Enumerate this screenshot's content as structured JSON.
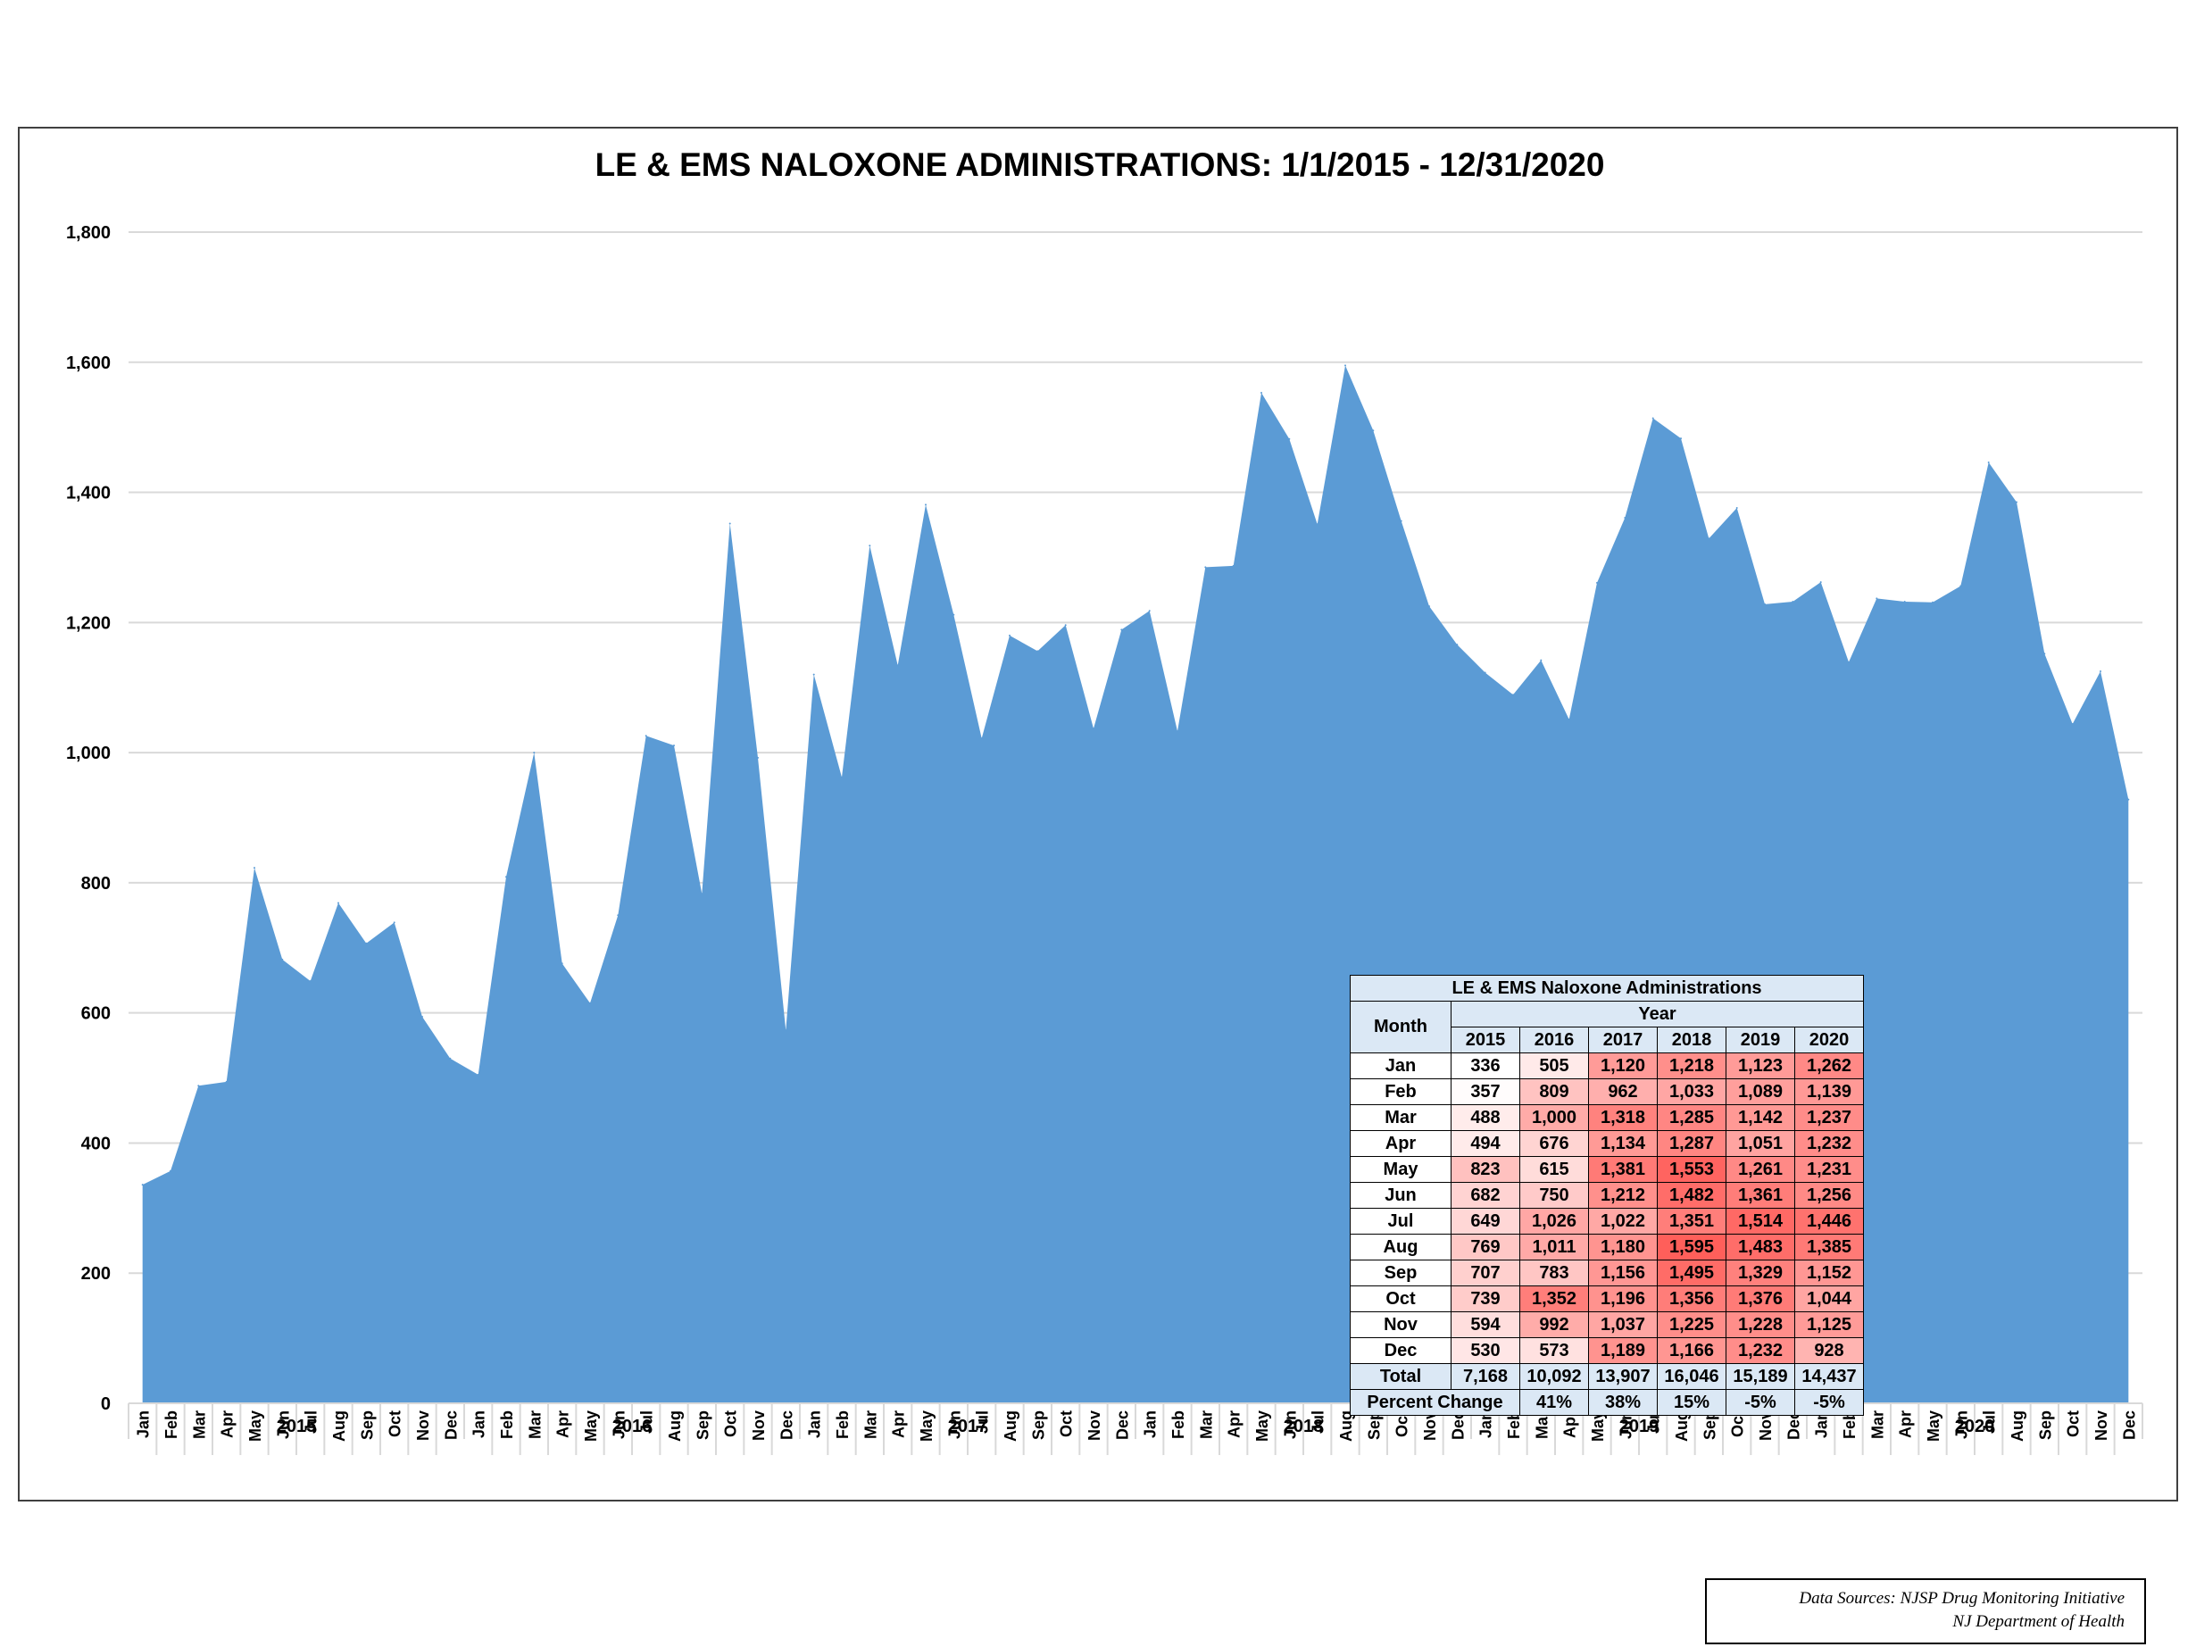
{
  "chart_data": {
    "type": "area",
    "title": "LE & EMS NALOXONE ADMINISTRATIONS: 1/1/2015 - 12/31/2020",
    "xlabel": "",
    "ylabel": "",
    "ylim": [
      0,
      1800
    ],
    "yticks": [
      "0",
      "200",
      "400",
      "600",
      "800",
      "1,000",
      "1,200",
      "1,400",
      "1,600",
      "1,800"
    ],
    "ytick_values": [
      0,
      200,
      400,
      600,
      800,
      1000,
      1200,
      1400,
      1600,
      1800
    ],
    "grid": true,
    "fill_color": "#5b9bd5",
    "months": [
      "Jan",
      "Feb",
      "Mar",
      "Apr",
      "May",
      "Jun",
      "Jul",
      "Aug",
      "Sep",
      "Oct",
      "Nov",
      "Dec"
    ],
    "years": [
      "2015",
      "2016",
      "2017",
      "2018",
      "2019",
      "2020"
    ],
    "series": [
      {
        "values": [
          336,
          357,
          488,
          494,
          823,
          682,
          649,
          769,
          707,
          739,
          594,
          530,
          505,
          809,
          1000,
          676,
          615,
          750,
          1026,
          1011,
          783,
          1352,
          992,
          573,
          1120,
          962,
          1318,
          1134,
          1381,
          1212,
          1022,
          1180,
          1156,
          1196,
          1037,
          1189,
          1218,
          1033,
          1285,
          1287,
          1553,
          1482,
          1351,
          1595,
          1495,
          1356,
          1225,
          1166,
          1123,
          1089,
          1142,
          1051,
          1261,
          1361,
          1514,
          1483,
          1329,
          1376,
          1228,
          1232,
          1262,
          1139,
          1237,
          1232,
          1231,
          1256,
          1446,
          1385,
          1152,
          1044,
          1125,
          928
        ]
      }
    ]
  },
  "table": {
    "title": "LE & EMS Naloxone Administrations",
    "month_header": "Month",
    "year_header": "Year",
    "year_cols": [
      "2015",
      "2016",
      "2017",
      "2018",
      "2019",
      "2020"
    ],
    "rows": [
      {
        "month": "Jan",
        "cells": [
          "336",
          "505",
          "1,120",
          "1,218",
          "1,123",
          "1,262"
        ],
        "vals": [
          336,
          505,
          1120,
          1218,
          1123,
          1262
        ]
      },
      {
        "month": "Feb",
        "cells": [
          "357",
          "809",
          "962",
          "1,033",
          "1,089",
          "1,139"
        ],
        "vals": [
          357,
          809,
          962,
          1033,
          1089,
          1139
        ]
      },
      {
        "month": "Mar",
        "cells": [
          "488",
          "1,000",
          "1,318",
          "1,285",
          "1,142",
          "1,237"
        ],
        "vals": [
          488,
          1000,
          1318,
          1285,
          1142,
          1237
        ]
      },
      {
        "month": "Apr",
        "cells": [
          "494",
          "676",
          "1,134",
          "1,287",
          "1,051",
          "1,232"
        ],
        "vals": [
          494,
          676,
          1134,
          1287,
          1051,
          1232
        ]
      },
      {
        "month": "May",
        "cells": [
          "823",
          "615",
          "1,381",
          "1,553",
          "1,261",
          "1,231"
        ],
        "vals": [
          823,
          615,
          1381,
          1553,
          1261,
          1231
        ]
      },
      {
        "month": "Jun",
        "cells": [
          "682",
          "750",
          "1,212",
          "1,482",
          "1,361",
          "1,256"
        ],
        "vals": [
          682,
          750,
          1212,
          1482,
          1361,
          1256
        ]
      },
      {
        "month": "Jul",
        "cells": [
          "649",
          "1,026",
          "1,022",
          "1,351",
          "1,514",
          "1,446"
        ],
        "vals": [
          649,
          1026,
          1022,
          1351,
          1514,
          1446
        ]
      },
      {
        "month": "Aug",
        "cells": [
          "769",
          "1,011",
          "1,180",
          "1,595",
          "1,483",
          "1,385"
        ],
        "vals": [
          769,
          1011,
          1180,
          1595,
          1483,
          1385
        ]
      },
      {
        "month": "Sep",
        "cells": [
          "707",
          "783",
          "1,156",
          "1,495",
          "1,329",
          "1,152"
        ],
        "vals": [
          707,
          783,
          1156,
          1495,
          1329,
          1152
        ]
      },
      {
        "month": "Oct",
        "cells": [
          "739",
          "1,352",
          "1,196",
          "1,356",
          "1,376",
          "1,044"
        ],
        "vals": [
          739,
          1352,
          1196,
          1356,
          1376,
          1044
        ]
      },
      {
        "month": "Nov",
        "cells": [
          "594",
          "992",
          "1,037",
          "1,225",
          "1,228",
          "1,125"
        ],
        "vals": [
          594,
          992,
          1037,
          1225,
          1228,
          1125
        ]
      },
      {
        "month": "Dec",
        "cells": [
          "530",
          "573",
          "1,189",
          "1,166",
          "1,232",
          "928"
        ],
        "vals": [
          530,
          573,
          1189,
          1166,
          1232,
          928
        ]
      }
    ],
    "total_label": "Total",
    "totals": [
      "7,168",
      "10,092",
      "13,907",
      "16,046",
      "15,189",
      "14,437"
    ],
    "pct_label": "Percent Change",
    "pct_changes": [
      "41%",
      "38%",
      "15%",
      "-5%",
      "-5%"
    ]
  },
  "source": {
    "line1": "Data Sources: NJSP Drug Monitoring Initiative",
    "line2": "NJ Department of Health"
  }
}
